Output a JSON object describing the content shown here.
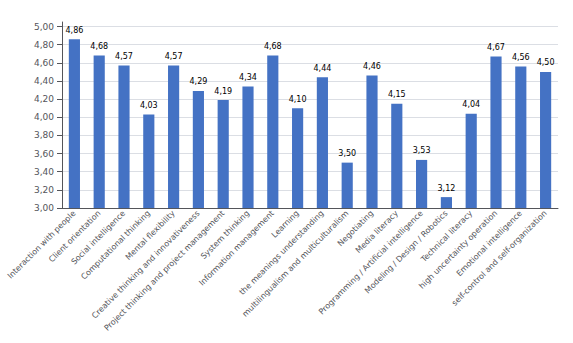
{
  "chart_data": {
    "type": "bar",
    "categories": [
      "Interaction with people",
      "Client orientation",
      "Social intelligence",
      "Computational thinking",
      "Mental flexibility",
      "Creative thinking and innovativeness",
      "Project thinking and project management",
      "System thinking",
      "Information management",
      "Learning",
      "the meanings understanding",
      "multilingualism and multiculturalism",
      "Negotiating",
      "Media literacy",
      "Programming / Artificial intelligence",
      "Modeling / Design / Robotics",
      "Technical literacy",
      "high uncertainty operation",
      "Emotional intelligence",
      "self-control and self-organization"
    ],
    "values": [
      4.86,
      4.68,
      4.57,
      4.03,
      4.57,
      4.29,
      4.19,
      4.34,
      4.68,
      4.1,
      4.44,
      3.5,
      4.46,
      4.15,
      3.53,
      3.12,
      4.04,
      4.67,
      4.56,
      4.5
    ],
    "value_labels": [
      "4,86",
      "4,68",
      "4,57",
      "4,03",
      "4,57",
      "4,29",
      "4,19",
      "4,34",
      "4,68",
      "4,10",
      "4,44",
      "3,50",
      "4,46",
      "4,15",
      "3,53",
      "3,12",
      "4,04",
      "4,67",
      "4,56",
      "4,50"
    ],
    "color": "#4472C4",
    "ylim": [
      3.0,
      5.05
    ],
    "yticks": [
      {
        "value": 3.0,
        "label": "3,00"
      },
      {
        "value": 3.2,
        "label": "3,20"
      },
      {
        "value": 3.4,
        "label": "3,40"
      },
      {
        "value": 3.6,
        "label": "3,60"
      },
      {
        "value": 3.8,
        "label": "3,80"
      },
      {
        "value": 4.0,
        "label": "4,00"
      },
      {
        "value": 4.2,
        "label": "4,20"
      },
      {
        "value": 4.4,
        "label": "4,40"
      },
      {
        "value": 4.6,
        "label": "4,60"
      },
      {
        "value": 4.8,
        "label": "4,80"
      },
      {
        "value": 5.0,
        "label": "5,00"
      }
    ],
    "grid": true,
    "data_labels": true
  }
}
